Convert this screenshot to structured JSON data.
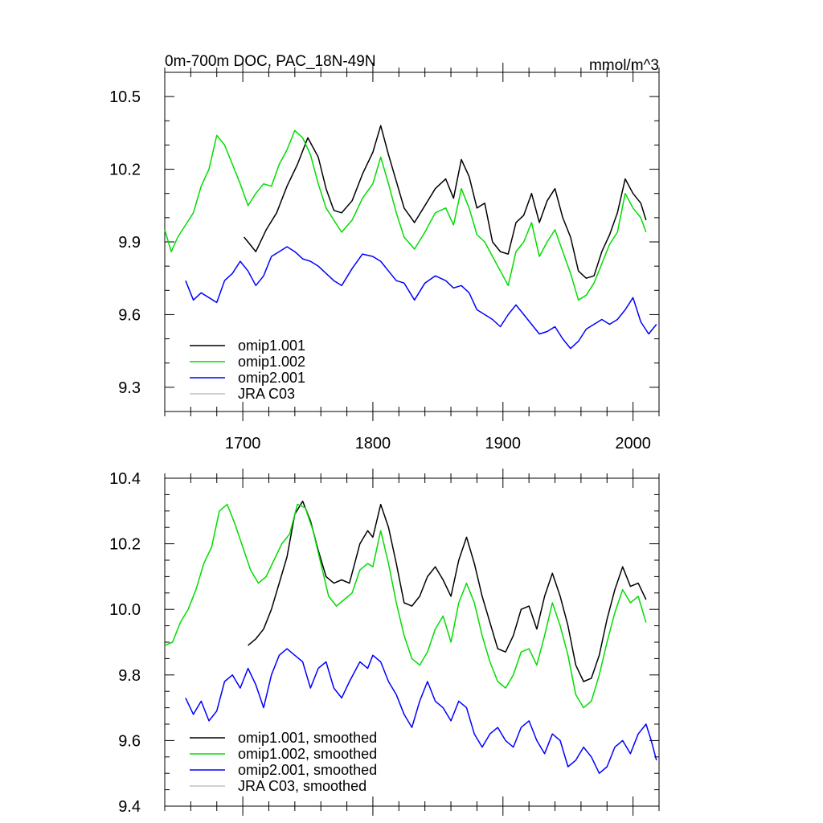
{
  "chart_data": [
    {
      "type": "line",
      "title": "0m-700m DOC, PAC_18N-49N",
      "units": "mmol/m^3",
      "xlim": [
        1640,
        2020
      ],
      "ylim": [
        9.2,
        10.6
      ],
      "yticks": [
        9.3,
        9.6,
        9.9,
        10.2,
        10.5
      ],
      "ytick_labels": [
        "9.3",
        "9.6",
        "9.9",
        "10.2",
        "10.5"
      ],
      "xticks": [
        1700,
        1800,
        1900,
        2000
      ],
      "xtick_labels": [
        "1700",
        "1800",
        "1900",
        "2000"
      ],
      "legend_position": "lower-left",
      "series": [
        {
          "name": "omip1.001",
          "color": "#000000",
          "x": [
            1701,
            1710,
            1718,
            1726,
            1734,
            1742,
            1750,
            1758,
            1764,
            1770,
            1776,
            1784,
            1792,
            1800,
            1806,
            1812,
            1818,
            1824,
            1832,
            1840,
            1848,
            1856,
            1862,
            1868,
            1874,
            1880,
            1886,
            1892,
            1898,
            1904,
            1910,
            1916,
            1922,
            1928,
            1934,
            1940,
            1946,
            1952,
            1958,
            1964,
            1970,
            1976,
            1982,
            1988,
            1994,
            2000,
            2006,
            2010
          ],
          "y": [
            9.92,
            9.86,
            9.95,
            10.02,
            10.13,
            10.22,
            10.33,
            10.25,
            10.12,
            10.03,
            10.02,
            10.07,
            10.18,
            10.27,
            10.38,
            10.26,
            10.15,
            10.04,
            9.98,
            10.05,
            10.12,
            10.16,
            10.08,
            10.24,
            10.17,
            10.04,
            10.06,
            9.9,
            9.86,
            9.85,
            9.98,
            10.01,
            10.1,
            9.98,
            10.07,
            10.12,
            10.0,
            9.92,
            9.78,
            9.75,
            9.76,
            9.86,
            9.93,
            10.02,
            10.16,
            10.1,
            10.06,
            9.99
          ]
        },
        {
          "name": "omip1.002",
          "color": "#00dd00",
          "x": [
            1640,
            1645,
            1650,
            1656,
            1662,
            1668,
            1674,
            1680,
            1686,
            1692,
            1698,
            1704,
            1710,
            1716,
            1722,
            1728,
            1734,
            1740,
            1746,
            1752,
            1758,
            1764,
            1770,
            1776,
            1784,
            1792,
            1800,
            1806,
            1812,
            1818,
            1824,
            1832,
            1840,
            1848,
            1856,
            1862,
            1868,
            1874,
            1880,
            1886,
            1892,
            1898,
            1904,
            1910,
            1916,
            1922,
            1928,
            1934,
            1940,
            1946,
            1952,
            1958,
            1964,
            1970,
            1976,
            1982,
            1988,
            1994,
            2000,
            2006,
            2010
          ],
          "y": [
            9.95,
            9.86,
            9.92,
            9.97,
            10.02,
            10.13,
            10.2,
            10.34,
            10.3,
            10.22,
            10.14,
            10.05,
            10.1,
            10.14,
            10.13,
            10.22,
            10.28,
            10.36,
            10.33,
            10.26,
            10.14,
            10.04,
            9.99,
            9.94,
            9.99,
            10.08,
            10.14,
            10.25,
            10.14,
            10.02,
            9.92,
            9.87,
            9.94,
            10.02,
            10.04,
            9.97,
            10.12,
            10.04,
            9.93,
            9.9,
            9.84,
            9.78,
            9.72,
            9.86,
            9.9,
            9.98,
            9.84,
            9.9,
            9.95,
            9.86,
            9.77,
            9.66,
            9.68,
            9.73,
            9.81,
            9.89,
            9.94,
            10.1,
            10.04,
            10.0,
            9.94
          ]
        },
        {
          "name": "omip2.001",
          "color": "#0000ff",
          "x": [
            1656,
            1662,
            1668,
            1674,
            1680,
            1686,
            1692,
            1698,
            1704,
            1710,
            1716,
            1722,
            1728,
            1734,
            1740,
            1746,
            1752,
            1758,
            1764,
            1770,
            1776,
            1784,
            1792,
            1800,
            1806,
            1812,
            1818,
            1824,
            1832,
            1840,
            1848,
            1856,
            1862,
            1868,
            1874,
            1880,
            1886,
            1892,
            1898,
            1904,
            1910,
            1916,
            1922,
            1928,
            1934,
            1940,
            1946,
            1952,
            1958,
            1964,
            1970,
            1976,
            1982,
            1988,
            1994,
            2000,
            2006,
            2012,
            2018
          ],
          "y": [
            9.74,
            9.66,
            9.69,
            9.67,
            9.65,
            9.74,
            9.77,
            9.82,
            9.78,
            9.72,
            9.76,
            9.84,
            9.86,
            9.88,
            9.86,
            9.83,
            9.82,
            9.8,
            9.77,
            9.74,
            9.72,
            9.79,
            9.85,
            9.84,
            9.82,
            9.78,
            9.74,
            9.73,
            9.66,
            9.73,
            9.76,
            9.74,
            9.71,
            9.72,
            9.69,
            9.62,
            9.6,
            9.58,
            9.55,
            9.6,
            9.64,
            9.6,
            9.56,
            9.52,
            9.53,
            9.55,
            9.5,
            9.46,
            9.49,
            9.54,
            9.56,
            9.58,
            9.56,
            9.58,
            9.62,
            9.67,
            9.57,
            9.52,
            9.56
          ]
        },
        {
          "name": "JRA C03",
          "color": "#c0c0c0",
          "x": [],
          "y": []
        }
      ]
    },
    {
      "type": "line",
      "title": "",
      "units": "",
      "xlim": [
        1640,
        2020
      ],
      "ylim": [
        9.4,
        10.4
      ],
      "yticks": [
        9.4,
        9.6,
        9.8,
        10.0,
        10.2,
        10.4
      ],
      "ytick_labels": [
        "9.4",
        "9.6",
        "9.8",
        "10.0",
        "10.2",
        "10.4"
      ],
      "xticks": [
        1700,
        1800,
        1900,
        2000
      ],
      "xtick_labels": [],
      "legend_position": "lower-left",
      "series": [
        {
          "name": "omip1.001, smoothed",
          "color": "#000000",
          "x": [
            1704,
            1710,
            1716,
            1722,
            1728,
            1734,
            1740,
            1746,
            1752,
            1758,
            1764,
            1770,
            1776,
            1782,
            1790,
            1796,
            1800,
            1806,
            1812,
            1818,
            1824,
            1830,
            1836,
            1842,
            1848,
            1854,
            1860,
            1866,
            1872,
            1878,
            1884,
            1890,
            1896,
            1902,
            1908,
            1914,
            1920,
            1926,
            1932,
            1938,
            1944,
            1950,
            1956,
            1962,
            1968,
            1974,
            1980,
            1986,
            1992,
            1998,
            2004,
            2010
          ],
          "y": [
            9.89,
            9.91,
            9.94,
            10.0,
            10.08,
            10.16,
            10.29,
            10.33,
            10.27,
            10.18,
            10.1,
            10.08,
            10.09,
            10.08,
            10.2,
            10.24,
            10.22,
            10.32,
            10.25,
            10.14,
            10.02,
            10.01,
            10.04,
            10.1,
            10.13,
            10.09,
            10.04,
            10.15,
            10.22,
            10.14,
            10.04,
            9.96,
            9.88,
            9.87,
            9.92,
            10.0,
            10.01,
            9.94,
            10.04,
            10.11,
            10.04,
            9.95,
            9.83,
            9.78,
            9.79,
            9.86,
            9.97,
            10.06,
            10.13,
            10.07,
            10.08,
            10.03
          ]
        },
        {
          "name": "omip1.002, smoothed",
          "color": "#00dd00",
          "x": [
            1640,
            1646,
            1652,
            1658,
            1664,
            1670,
            1676,
            1682,
            1688,
            1694,
            1700,
            1706,
            1712,
            1718,
            1724,
            1730,
            1736,
            1742,
            1748,
            1754,
            1760,
            1766,
            1772,
            1778,
            1784,
            1790,
            1796,
            1800,
            1806,
            1812,
            1818,
            1824,
            1830,
            1836,
            1842,
            1848,
            1854,
            1860,
            1866,
            1872,
            1878,
            1884,
            1890,
            1896,
            1902,
            1908,
            1914,
            1920,
            1926,
            1932,
            1938,
            1944,
            1950,
            1956,
            1962,
            1968,
            1974,
            1980,
            1986,
            1992,
            1998,
            2004,
            2010
          ],
          "y": [
            9.89,
            9.9,
            9.96,
            10.0,
            10.06,
            10.14,
            10.19,
            10.3,
            10.32,
            10.26,
            10.19,
            10.12,
            10.08,
            10.1,
            10.15,
            10.2,
            10.23,
            10.32,
            10.31,
            10.24,
            10.14,
            10.04,
            10.01,
            10.03,
            10.05,
            10.12,
            10.14,
            10.13,
            10.24,
            10.14,
            10.02,
            9.92,
            9.85,
            9.83,
            9.87,
            9.94,
            9.98,
            9.9,
            10.02,
            10.08,
            10.02,
            9.92,
            9.84,
            9.78,
            9.76,
            9.8,
            9.87,
            9.88,
            9.83,
            9.92,
            10.02,
            9.95,
            9.86,
            9.74,
            9.7,
            9.72,
            9.8,
            9.9,
            9.99,
            10.06,
            10.02,
            10.04,
            9.96
          ]
        },
        {
          "name": "omip2.001, smoothed",
          "color": "#0000ff",
          "x": [
            1656,
            1662,
            1668,
            1674,
            1680,
            1686,
            1692,
            1698,
            1704,
            1710,
            1716,
            1722,
            1728,
            1734,
            1740,
            1746,
            1752,
            1758,
            1764,
            1770,
            1776,
            1782,
            1790,
            1796,
            1800,
            1806,
            1812,
            1818,
            1824,
            1830,
            1836,
            1842,
            1848,
            1854,
            1860,
            1866,
            1872,
            1878,
            1884,
            1890,
            1896,
            1902,
            1908,
            1914,
            1920,
            1926,
            1932,
            1938,
            1944,
            1950,
            1956,
            1962,
            1968,
            1974,
            1980,
            1986,
            1992,
            1998,
            2004,
            2010,
            2014,
            2018
          ],
          "y": [
            9.73,
            9.68,
            9.72,
            9.66,
            9.69,
            9.78,
            9.8,
            9.76,
            9.82,
            9.77,
            9.7,
            9.8,
            9.86,
            9.88,
            9.86,
            9.84,
            9.76,
            9.82,
            9.84,
            9.76,
            9.73,
            9.78,
            9.84,
            9.82,
            9.86,
            9.84,
            9.78,
            9.74,
            9.68,
            9.64,
            9.72,
            9.78,
            9.72,
            9.7,
            9.66,
            9.72,
            9.7,
            9.62,
            9.58,
            9.62,
            9.64,
            9.6,
            9.58,
            9.64,
            9.66,
            9.6,
            9.56,
            9.62,
            9.6,
            9.52,
            9.54,
            9.58,
            9.55,
            9.5,
            9.52,
            9.58,
            9.6,
            9.56,
            9.62,
            9.65,
            9.6,
            9.54
          ]
        },
        {
          "name": "JRA C03, smoothed",
          "color": "#c0c0c0",
          "x": [],
          "y": []
        }
      ]
    }
  ]
}
